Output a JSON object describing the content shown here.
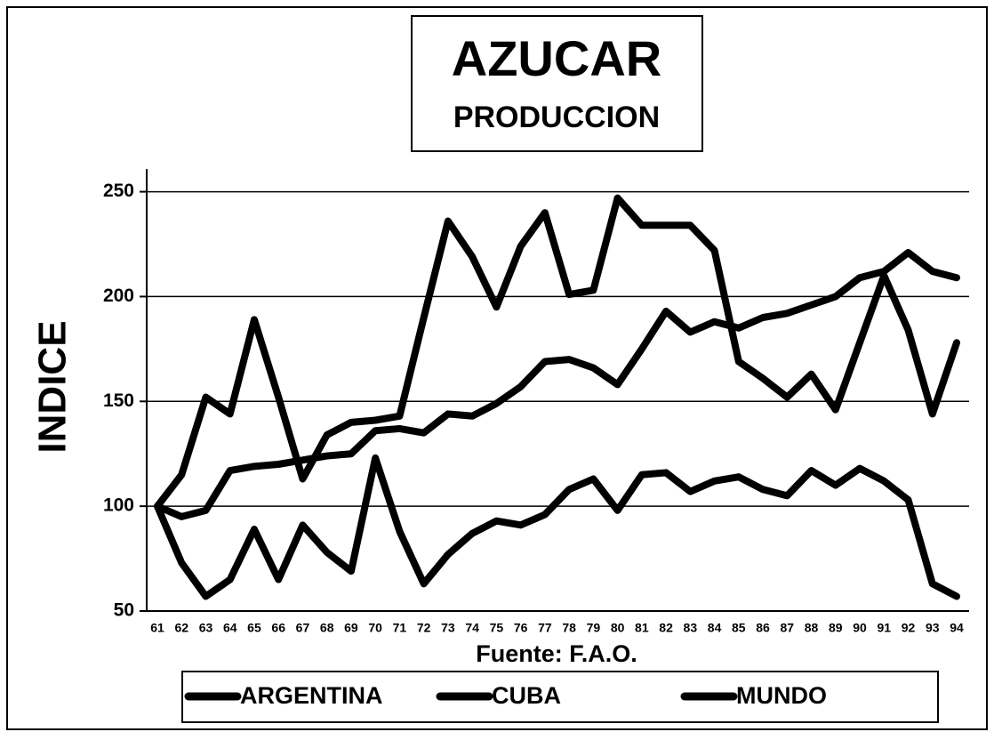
{
  "chart_data": {
    "type": "line",
    "title": "AZUCAR",
    "subtitle": "PRODUCCION",
    "y_label": "INDICE",
    "x_label": "Fuente: F.A.O.",
    "categories": [
      "61",
      "62",
      "63",
      "64",
      "65",
      "66",
      "67",
      "68",
      "69",
      "70",
      "71",
      "72",
      "73",
      "74",
      "75",
      "76",
      "77",
      "78",
      "79",
      "80",
      "81",
      "82",
      "83",
      "84",
      "85",
      "86",
      "87",
      "88",
      "89",
      "90",
      "91",
      "92",
      "93",
      "94"
    ],
    "series": [
      {
        "name": "ARGENTINA",
        "color": "#000000",
        "values": [
          100,
          115,
          152,
          144,
          189,
          152,
          113,
          134,
          140,
          141,
          143,
          190,
          236,
          219,
          195,
          224,
          240,
          201,
          203,
          247,
          234,
          234,
          234,
          222,
          169,
          161,
          152,
          163,
          146,
          178,
          210,
          184,
          144,
          178
        ]
      },
      {
        "name": "CUBA",
        "color": "#000000",
        "values": [
          100,
          73,
          57,
          65,
          89,
          65,
          91,
          78,
          69,
          123,
          88,
          63,
          77,
          87,
          93,
          91,
          96,
          108,
          113,
          98,
          115,
          116,
          107,
          112,
          114,
          108,
          105,
          117,
          110,
          118,
          112,
          103,
          63,
          57
        ]
      },
      {
        "name": "MUNDO",
        "color": "#000000",
        "values": [
          100,
          95,
          98,
          117,
          119,
          120,
          122,
          124,
          125,
          136,
          137,
          135,
          144,
          143,
          149,
          157,
          169,
          170,
          166,
          158,
          175,
          193,
          183,
          188,
          185,
          190,
          192,
          196,
          200,
          209,
          212,
          221,
          212,
          209
        ]
      }
    ],
    "ylim": [
      50,
      260
    ],
    "yticks": [
      50,
      100,
      150,
      200,
      250
    ],
    "grid": true,
    "legend": "bottom"
  }
}
